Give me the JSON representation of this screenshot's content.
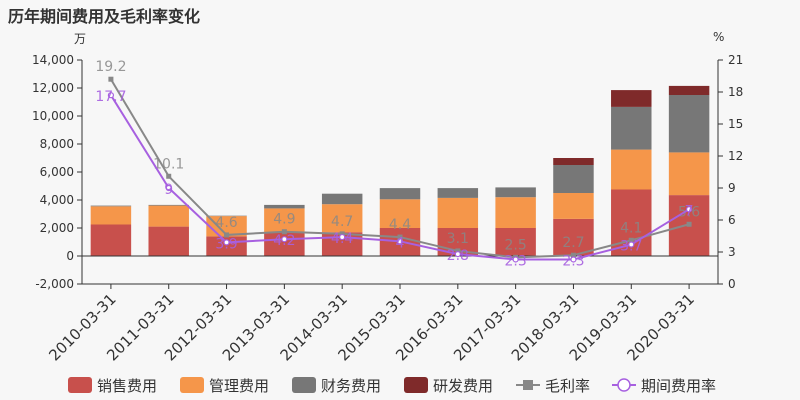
{
  "title": "历年期间费用及毛利率变化",
  "left_unit": "万",
  "right_unit": "%",
  "chart_data": {
    "type": "bar",
    "stacked": true,
    "categories": [
      "2010-03-31",
      "2011-03-31",
      "2012-03-31",
      "2013-03-31",
      "2014-03-31",
      "2015-03-31",
      "2016-03-31",
      "2017-03-31",
      "2018-03-31",
      "2019-03-31",
      "2020-03-31"
    ],
    "series": [
      {
        "name": "销售费用",
        "color": "#c8504c",
        "axis": "left",
        "values": [
          2250,
          2100,
          1400,
          1700,
          1700,
          2000,
          2000,
          2000,
          2650,
          4750,
          4350
        ]
      },
      {
        "name": "管理费用",
        "color": "#f5964a",
        "axis": "left",
        "values": [
          1300,
          1500,
          1450,
          1700,
          2000,
          2050,
          2150,
          2200,
          1850,
          2850,
          3050
        ]
      },
      {
        "name": "财务费用",
        "color": "#777777",
        "axis": "left",
        "values": [
          50,
          50,
          30,
          250,
          750,
          800,
          700,
          700,
          2000,
          3050,
          4100
        ]
      },
      {
        "name": "研发费用",
        "color": "#7f2a2a",
        "axis": "left",
        "values": [
          0,
          0,
          0,
          0,
          0,
          0,
          0,
          0,
          500,
          1200,
          650
        ]
      }
    ],
    "lines": [
      {
        "name": "毛利率",
        "color": "#888888",
        "axis": "right",
        "marker": "square",
        "values": [
          19.2,
          10.1,
          4.6,
          4.9,
          4.7,
          4.4,
          3.1,
          2.5,
          2.7,
          4.1,
          5.6
        ]
      },
      {
        "name": "期间费用率",
        "color": "#a760e0",
        "axis": "right",
        "marker": "circle",
        "values": [
          17.7,
          9,
          3.9,
          4.2,
          4.4,
          4,
          2.8,
          2.3,
          2.3,
          3.7,
          7
        ]
      }
    ],
    "left_axis": {
      "min": -2000,
      "max": 14000,
      "ticks": [
        "-2,000",
        "0",
        "2,000",
        "4,000",
        "6,000",
        "8,000",
        "10,000",
        "12,000",
        "14,000"
      ]
    },
    "right_axis": {
      "min": 0,
      "max": 21,
      "ticks": [
        "0",
        "3",
        "6",
        "9",
        "12",
        "15",
        "18",
        "21"
      ]
    },
    "legend_position": "bottom"
  }
}
